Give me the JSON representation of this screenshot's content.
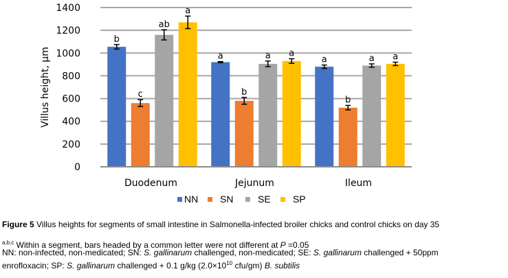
{
  "chart_data": {
    "type": "bar",
    "title": "",
    "xlabel": "",
    "ylabel": "Villus height, µm",
    "ylim": [
      0,
      1400
    ],
    "yticks": [
      0,
      200,
      400,
      600,
      800,
      1000,
      1200,
      1400
    ],
    "grid": true,
    "legend_position": "bottom",
    "categories": [
      "Duodenum",
      "Jejunum",
      "Ileum"
    ],
    "series": [
      {
        "name": "NN",
        "color": "#4472C4",
        "values": [
          1055,
          920,
          880
        ],
        "errors": [
          20,
          5,
          15
        ],
        "letters": [
          "b",
          "a",
          "a"
        ]
      },
      {
        "name": "SN",
        "color": "#ED7D31",
        "values": [
          560,
          580,
          520
        ],
        "errors": [
          30,
          30,
          20
        ],
        "letters": [
          "c",
          "b",
          "b"
        ]
      },
      {
        "name": "SE",
        "color": "#A5A5A5",
        "values": [
          1160,
          905,
          890
        ],
        "errors": [
          45,
          25,
          15
        ],
        "letters": [
          "ab",
          "a",
          "a"
        ]
      },
      {
        "name": "SP",
        "color": "#FFC000",
        "values": [
          1270,
          930,
          905
        ],
        "errors": [
          55,
          20,
          15
        ],
        "letters": [
          "a",
          "a",
          "a"
        ]
      }
    ]
  },
  "caption": {
    "figure_label": "Figure 5",
    "title": " Villus heights for segments of small intestine in Salmonella-infected broiler chicks and control chicks on day 35",
    "note_superscript": "a,b,c",
    "note_text": " Within a segment, bars headed by a common letter were not different at ",
    "note_p": "P",
    "note_p_value": " =0.05",
    "abbr_nn": "NN: non-infected, non-medicated; SN: ",
    "sg1": "S. gallinarum",
    "abbr_sn_rest": " challenged, non-medicated; SE: ",
    "sg2": "S. gallinarum",
    "abbr_se_rest": " challenged + 50ppm",
    "abbr_line2_start": "enrofloxacin; SP: ",
    "sg3": "S. gallinarum",
    "abbr_sp_rest": " challenged + 0.1 g/kg (2.0×10",
    "exp": "10",
    "abbr_sp_end": " cfu/gm) ",
    "bsub": "B. subtilis"
  }
}
